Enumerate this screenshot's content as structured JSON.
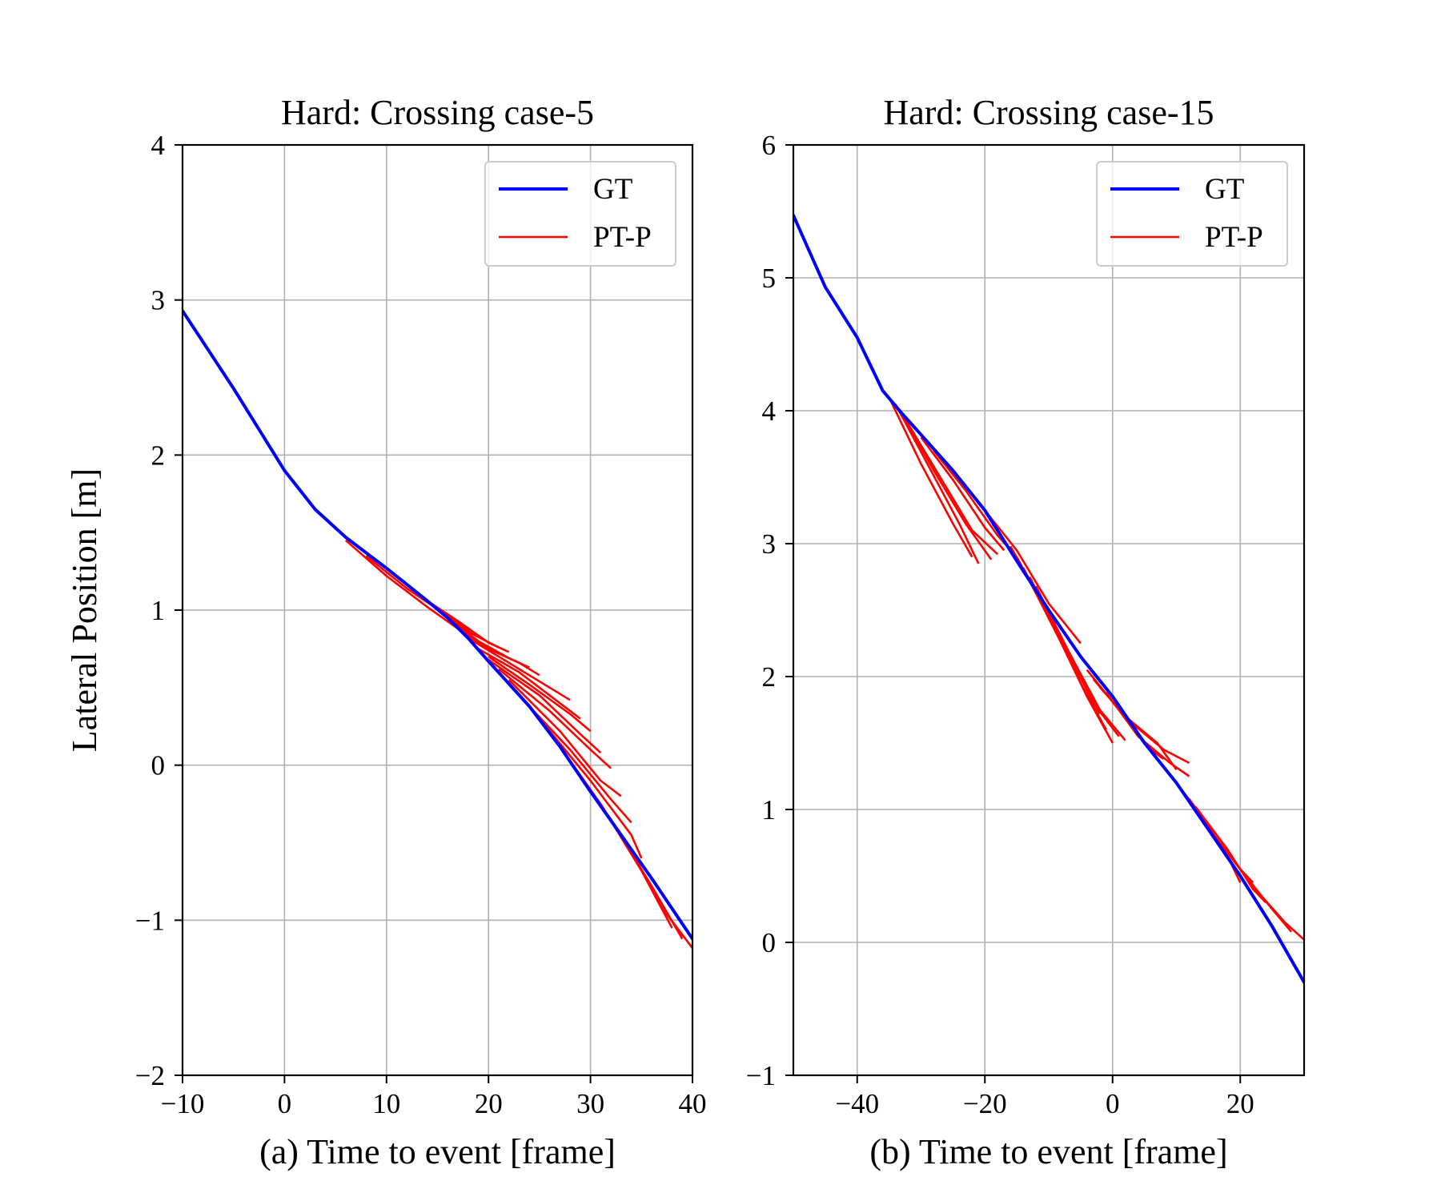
{
  "chart_data": [
    {
      "type": "line",
      "title": "Hard: Crossing case-5",
      "xlabel": "(a) Time to event [frame]",
      "ylabel": "Lateral Position [m]",
      "xlim": [
        -10,
        40
      ],
      "ylim": [
        -2,
        4
      ],
      "xticks": [
        -10,
        0,
        10,
        20,
        30,
        40
      ],
      "yticks": [
        -2,
        -1,
        0,
        1,
        2,
        3,
        4
      ],
      "xtick_labels": [
        "−10",
        "0",
        "10",
        "20",
        "30",
        "40"
      ],
      "ytick_labels": [
        "−2",
        "−1",
        "0",
        "1",
        "2",
        "3",
        "4"
      ],
      "grid": true,
      "legend": {
        "placement": "top-right",
        "entries": [
          {
            "label": "GT",
            "color": "#0000ff"
          },
          {
            "label": "PT-P",
            "color": "#ff0000"
          }
        ]
      },
      "series": [
        {
          "name": "GT",
          "color": "#0000ff",
          "points": [
            [
              -10,
              2.93
            ],
            [
              -5,
              2.43
            ],
            [
              0,
              1.9
            ],
            [
              3,
              1.65
            ],
            [
              6,
              1.47
            ],
            [
              10,
              1.27
            ],
            [
              14,
              1.06
            ],
            [
              16,
              0.95
            ],
            [
              18,
              0.82
            ],
            [
              20,
              0.67
            ],
            [
              24,
              0.38
            ],
            [
              27,
              0.12
            ],
            [
              30,
              -0.17
            ],
            [
              33,
              -0.45
            ],
            [
              36,
              -0.73
            ],
            [
              40,
              -1.12
            ]
          ]
        },
        {
          "name": "PT-P",
          "color": "#ff0000",
          "trajectories": [
            [
              [
                6,
                1.45
              ],
              [
                10,
                1.22
              ],
              [
                14,
                1.02
              ],
              [
                17,
                0.88
              ]
            ],
            [
              [
                8,
                1.35
              ],
              [
                12,
                1.14
              ],
              [
                16,
                0.96
              ],
              [
                19,
                0.83
              ]
            ],
            [
              [
                10,
                1.27
              ],
              [
                14,
                1.06
              ],
              [
                18,
                0.86
              ],
              [
                21,
                0.76
              ]
            ],
            [
              [
                14,
                1.06
              ],
              [
                17,
                0.93
              ],
              [
                20,
                0.79
              ],
              [
                22,
                0.73
              ]
            ],
            [
              [
                16,
                0.95
              ],
              [
                19,
                0.8
              ],
              [
                22,
                0.69
              ],
              [
                24,
                0.63
              ]
            ],
            [
              [
                17,
                0.88
              ],
              [
                20,
                0.75
              ],
              [
                23,
                0.66
              ],
              [
                25,
                0.58
              ]
            ],
            [
              [
                18,
                0.82
              ],
              [
                22,
                0.66
              ],
              [
                26,
                0.5
              ],
              [
                28,
                0.42
              ]
            ],
            [
              [
                19,
                0.75
              ],
              [
                23,
                0.6
              ],
              [
                27,
                0.4
              ],
              [
                29,
                0.3
              ]
            ],
            [
              [
                20,
                0.7
              ],
              [
                24,
                0.52
              ],
              [
                28,
                0.33
              ],
              [
                30,
                0.22
              ]
            ],
            [
              [
                20,
                0.68
              ],
              [
                25,
                0.45
              ],
              [
                29,
                0.2
              ],
              [
                31,
                0.08
              ]
            ],
            [
              [
                21,
                0.62
              ],
              [
                26,
                0.35
              ],
              [
                30,
                0.1
              ],
              [
                32,
                -0.02
              ]
            ],
            [
              [
                22,
                0.55
              ],
              [
                27,
                0.22
              ],
              [
                31,
                -0.1
              ],
              [
                33,
                -0.2
              ]
            ],
            [
              [
                23,
                0.45
              ],
              [
                28,
                0.1
              ],
              [
                32,
                -0.22
              ],
              [
                34,
                -0.37
              ]
            ],
            [
              [
                25,
                0.3
              ],
              [
                30,
                -0.1
              ],
              [
                34,
                -0.45
              ],
              [
                35,
                -0.6
              ]
            ],
            [
              [
                27,
                0.12
              ],
              [
                31,
                -0.25
              ],
              [
                35,
                -0.68
              ],
              [
                38,
                -1.05
              ]
            ],
            [
              [
                28,
                0.02
              ],
              [
                32,
                -0.35
              ],
              [
                36,
                -0.78
              ],
              [
                39,
                -1.12
              ]
            ],
            [
              [
                29,
                -0.08
              ],
              [
                34,
                -0.55
              ],
              [
                37,
                -0.92
              ],
              [
                40,
                -1.18
              ]
            ]
          ]
        }
      ]
    },
    {
      "type": "line",
      "title": "Hard: Crossing case-15",
      "xlabel": "(b) Time to event [frame]",
      "ylabel": "",
      "xlim": [
        -50,
        30
      ],
      "ylim": [
        -1,
        6
      ],
      "xticks": [
        -40,
        -20,
        0,
        20
      ],
      "yticks": [
        -1,
        0,
        1,
        2,
        3,
        4,
        5,
        6
      ],
      "xtick_labels": [
        "−40",
        "−20",
        "0",
        "20"
      ],
      "ytick_labels": [
        "−1",
        "0",
        "1",
        "2",
        "3",
        "4",
        "5",
        "6"
      ],
      "grid": true,
      "legend": {
        "placement": "top-right",
        "entries": [
          {
            "label": "GT",
            "color": "#0000ff"
          },
          {
            "label": "PT-P",
            "color": "#ff0000"
          }
        ]
      },
      "series": [
        {
          "name": "GT",
          "color": "#0000ff",
          "points": [
            [
              -50,
              5.47
            ],
            [
              -45,
              4.93
            ],
            [
              -40,
              4.55
            ],
            [
              -36,
              4.15
            ],
            [
              -33,
              3.98
            ],
            [
              -30,
              3.82
            ],
            [
              -25,
              3.55
            ],
            [
              -20,
              3.25
            ],
            [
              -15,
              2.87
            ],
            [
              -10,
              2.5
            ],
            [
              -5,
              2.15
            ],
            [
              0,
              1.85
            ],
            [
              5,
              1.5
            ],
            [
              10,
              1.2
            ],
            [
              15,
              0.85
            ],
            [
              20,
              0.5
            ],
            [
              25,
              0.12
            ],
            [
              30,
              -0.3
            ]
          ]
        },
        {
          "name": "PT-P",
          "color": "#ff0000",
          "trajectories": [
            [
              [
                -35,
                4.1
              ],
              [
                -30,
                3.6
              ],
              [
                -25,
                3.15
              ],
              [
                -22,
                2.9
              ]
            ],
            [
              [
                -34,
                4.05
              ],
              [
                -29,
                3.6
              ],
              [
                -24,
                3.15
              ],
              [
                -21,
                2.85
              ]
            ],
            [
              [
                -33,
                3.98
              ],
              [
                -28,
                3.55
              ],
              [
                -23,
                3.15
              ],
              [
                -19,
                2.88
              ]
            ],
            [
              [
                -32,
                3.9
              ],
              [
                -27,
                3.5
              ],
              [
                -22,
                3.1
              ],
              [
                -18,
                2.92
              ]
            ],
            [
              [
                -30,
                3.8
              ],
              [
                -25,
                3.48
              ],
              [
                -20,
                3.12
              ],
              [
                -17,
                2.95
              ]
            ],
            [
              [
                -28,
                3.7
              ],
              [
                -23,
                3.4
              ],
              [
                -18,
                3.06
              ],
              [
                -15,
                2.9
              ]
            ],
            [
              [
                -20,
                3.25
              ],
              [
                -15,
                2.95
              ],
              [
                -10,
                2.55
              ],
              [
                -5,
                2.25
              ]
            ],
            [
              [
                -18,
                3.1
              ],
              [
                -13,
                2.72
              ],
              [
                -8,
                2.25
              ],
              [
                -4,
                1.9
              ]
            ],
            [
              [
                -16,
                2.98
              ],
              [
                -11,
                2.55
              ],
              [
                -6,
                2.08
              ],
              [
                -2,
                1.72
              ]
            ],
            [
              [
                -15,
                2.9
              ],
              [
                -10,
                2.45
              ],
              [
                -5,
                1.95
              ],
              [
                -1,
                1.6
              ]
            ],
            [
              [
                -14,
                2.82
              ],
              [
                -9,
                2.35
              ],
              [
                -4,
                1.85
              ],
              [
                0,
                1.5
              ]
            ],
            [
              [
                -13,
                2.75
              ],
              [
                -8,
                2.28
              ],
              [
                -3,
                1.8
              ],
              [
                1,
                1.55
              ]
            ],
            [
              [
                -12,
                2.68
              ],
              [
                -7,
                2.2
              ],
              [
                -2,
                1.75
              ],
              [
                2,
                1.52
              ]
            ],
            [
              [
                -4,
                2.05
              ],
              [
                1,
                1.75
              ],
              [
                6,
                1.45
              ],
              [
                8,
                1.38
              ]
            ],
            [
              [
                -3,
                1.98
              ],
              [
                2,
                1.7
              ],
              [
                7,
                1.5
              ],
              [
                10,
                1.3
              ]
            ],
            [
              [
                -2,
                1.92
              ],
              [
                3,
                1.65
              ],
              [
                8,
                1.45
              ],
              [
                12,
                1.35
              ]
            ],
            [
              [
                -1,
                1.88
              ],
              [
                4,
                1.55
              ],
              [
                9,
                1.35
              ],
              [
                12,
                1.25
              ]
            ],
            [
              [
                10,
                1.2
              ],
              [
                14,
                0.95
              ],
              [
                18,
                0.65
              ],
              [
                20,
                0.45
              ]
            ],
            [
              [
                12,
                1.08
              ],
              [
                16,
                0.8
              ],
              [
                20,
                0.55
              ],
              [
                22,
                0.45
              ]
            ],
            [
              [
                13,
                1.02
              ],
              [
                18,
                0.7
              ],
              [
                22,
                0.4
              ],
              [
                24,
                0.3
              ]
            ],
            [
              [
                16,
                0.8
              ],
              [
                20,
                0.55
              ],
              [
                25,
                0.25
              ],
              [
                28,
                0.08
              ]
            ],
            [
              [
                18,
                0.68
              ],
              [
                22,
                0.42
              ],
              [
                27,
                0.15
              ],
              [
                30,
                0.02
              ]
            ]
          ]
        }
      ]
    }
  ]
}
